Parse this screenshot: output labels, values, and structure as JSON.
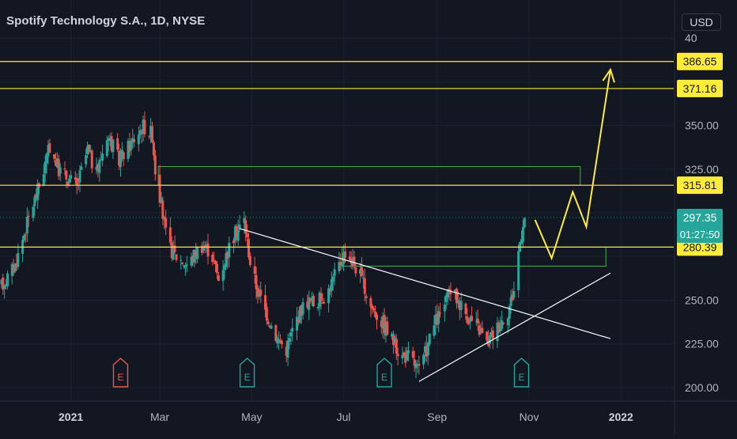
{
  "title": "Spotify Technology S.A., 1D, NYSE",
  "currency_badge": "USD",
  "price_marker": {
    "price": "297.35",
    "countdown": "01:27:50",
    "value": 297.35
  },
  "colors": {
    "background": "#131722",
    "up_candle": "#26a69a",
    "down_candle": "#ef5350",
    "yellow": "#ffeb3b",
    "green_zone": "#4caf50",
    "trendline": "#ffffff",
    "grid": "#1e2230",
    "axis_text": "#b2b5be"
  },
  "chart_data": {
    "type": "candlestick",
    "title": "Spotify Technology S.A., 1D, NYSE",
    "y_axis": {
      "ticks": [
        200,
        225,
        250,
        350
      ],
      "tick_labels": [
        "200.00",
        "225.00",
        "250.00",
        "350.00"
      ],
      "partial_tick_labels": [
        {
          "value": 325,
          "label": "325.00"
        },
        {
          "value": 400,
          "label": "40"
        }
      ],
      "range": [
        194,
        405
      ]
    },
    "x_axis": {
      "labels": [
        {
          "label": "2021",
          "bold": true,
          "date": "2021-01-01"
        },
        {
          "label": "Mar",
          "bold": false,
          "date": "2021-03-01"
        },
        {
          "label": "May",
          "bold": false,
          "date": "2021-05-01"
        },
        {
          "label": "Jul",
          "bold": false,
          "date": "2021-07-01"
        },
        {
          "label": "Sep",
          "bold": false,
          "date": "2021-09-01"
        },
        {
          "label": "Nov",
          "bold": false,
          "date": "2021-11-01"
        },
        {
          "label": "2022",
          "bold": true,
          "date": "2022-01-01"
        }
      ],
      "range": [
        "2020-11-15",
        "2022-02-05"
      ]
    },
    "price_path": [
      [
        "2020-11-16",
        258
      ],
      [
        "2020-11-25",
        270
      ],
      [
        "2020-12-05",
        300
      ],
      [
        "2020-12-12",
        318
      ],
      [
        "2020-12-18",
        338
      ],
      [
        "2020-12-24",
        325
      ],
      [
        "2021-01-05",
        315
      ],
      [
        "2021-01-12",
        336
      ],
      [
        "2021-01-18",
        322
      ],
      [
        "2021-01-25",
        345
      ],
      [
        "2021-02-02",
        330
      ],
      [
        "2021-02-10",
        340
      ],
      [
        "2021-02-18",
        350
      ],
      [
        "2021-02-24",
        345
      ],
      [
        "2021-02-26",
        325
      ],
      [
        "2021-03-01",
        310
      ],
      [
        "2021-03-06",
        282
      ],
      [
        "2021-03-12",
        275
      ],
      [
        "2021-03-20",
        270
      ],
      [
        "2021-03-28",
        282
      ],
      [
        "2021-04-04",
        278
      ],
      [
        "2021-04-09",
        262
      ],
      [
        "2021-04-15",
        278
      ],
      [
        "2021-04-20",
        288
      ],
      [
        "2021-04-26",
        296
      ],
      [
        "2021-04-30",
        272
      ],
      [
        "2021-05-05",
        255
      ],
      [
        "2021-05-12",
        240
      ],
      [
        "2021-05-18",
        228
      ],
      [
        "2021-05-24",
        222
      ],
      [
        "2021-05-30",
        238
      ],
      [
        "2021-06-06",
        250
      ],
      [
        "2021-06-12",
        248
      ],
      [
        "2021-06-20",
        254
      ],
      [
        "2021-06-26",
        266
      ],
      [
        "2021-07-02",
        278
      ],
      [
        "2021-07-07",
        272
      ],
      [
        "2021-07-12",
        264
      ],
      [
        "2021-07-18",
        248
      ],
      [
        "2021-07-26",
        238
      ],
      [
        "2021-08-02",
        228
      ],
      [
        "2021-08-08",
        218
      ],
      [
        "2021-08-14",
        218
      ],
      [
        "2021-08-20",
        209
      ],
      [
        "2021-08-25",
        222
      ],
      [
        "2021-08-30",
        236
      ],
      [
        "2021-09-05",
        245
      ],
      [
        "2021-09-10",
        256
      ],
      [
        "2021-09-15",
        250
      ],
      [
        "2021-09-22",
        240
      ],
      [
        "2021-09-30",
        232
      ],
      [
        "2021-10-04",
        225
      ],
      [
        "2021-10-12",
        236
      ],
      [
        "2021-10-18",
        244
      ],
      [
        "2021-10-22",
        256
      ],
      [
        "2021-10-25",
        278
      ],
      [
        "2021-10-28",
        295
      ],
      [
        "2021-10-29",
        297.35
      ]
    ],
    "annotations": {
      "horizontal_lines": [
        {
          "value": 386.65,
          "label": "386.65"
        },
        {
          "value": 371.16,
          "label": "371.16"
        },
        {
          "value": 315.81,
          "label": "315.81"
        },
        {
          "value": 280.39,
          "label": "280.39"
        }
      ],
      "zones": [
        {
          "from_date": "2021-02-28",
          "to_date": "2021-12-05",
          "low": 315.81,
          "high": 326.5
        },
        {
          "from_date": "2021-06-30",
          "to_date": "2021-12-22",
          "low": 269.5,
          "high": 280.39
        }
      ],
      "trendlines": [
        {
          "from": [
            "2021-04-23",
            291
          ],
          "to": [
            "2021-12-25",
            228
          ]
        },
        {
          "from": [
            "2021-08-20",
            203.5
          ],
          "to": [
            "2021-12-25",
            265.5
          ]
        }
      ],
      "projection_path": [
        [
          "2021-11-05",
          296
        ],
        [
          "2021-11-16",
          274
        ],
        [
          "2021-11-30",
          312
        ],
        [
          "2021-12-09",
          292
        ],
        [
          "2021-12-25",
          382
        ]
      ],
      "earnings_markers": [
        {
          "date": "2021-02-03",
          "letter": "E",
          "kind": "down"
        },
        {
          "date": "2021-04-28",
          "letter": "E",
          "kind": "up"
        },
        {
          "date": "2021-07-28",
          "letter": "E",
          "kind": "up"
        },
        {
          "date": "2021-10-27",
          "letter": "E",
          "kind": "up"
        }
      ]
    }
  }
}
